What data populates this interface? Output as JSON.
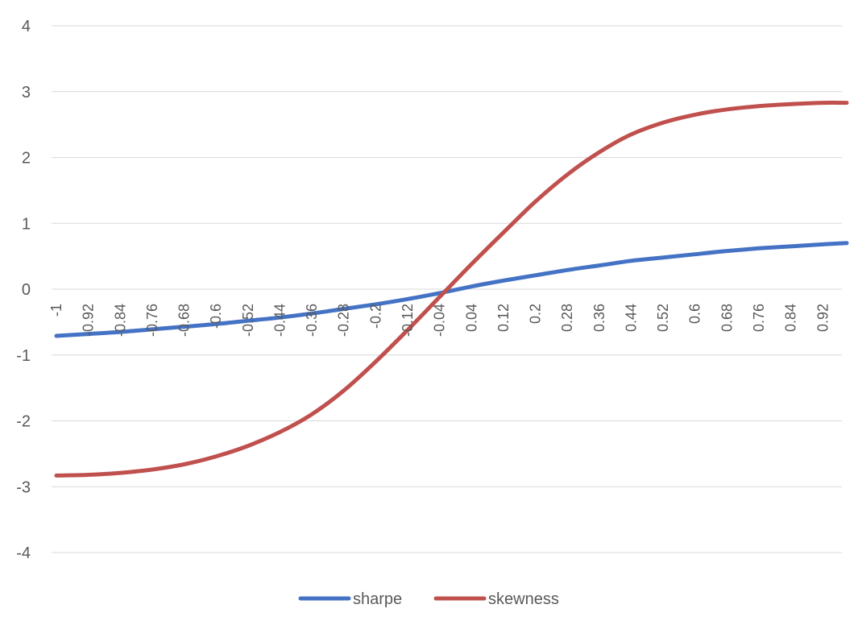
{
  "chart_data": {
    "type": "line",
    "title": "",
    "xlabel": "",
    "ylabel": "",
    "ylim": [
      -4,
      4
    ],
    "y_ticks": [
      "4",
      "3",
      "2",
      "1",
      "0",
      "-1",
      "-2",
      "-3",
      "-4"
    ],
    "y_tick_values": [
      4,
      3,
      2,
      1,
      0,
      -1,
      -2,
      -3,
      -4
    ],
    "x_range": [
      -1,
      0.98
    ],
    "x_tick_labels": [
      "-1",
      "-0.92",
      "-0.84",
      "-0.76",
      "-0.68",
      "-0.6",
      "-0.52",
      "-0.44",
      "-0.36",
      "-0.28",
      "-0.2",
      "-0.12",
      "-0.04",
      "0.04",
      "0.12",
      "0.2",
      "0.28",
      "0.36",
      "0.44",
      "0.52",
      "0.6",
      "0.68",
      "0.76",
      "0.84",
      "0.92"
    ],
    "x_tick_values": [
      -1,
      -0.92,
      -0.84,
      -0.76,
      -0.68,
      -0.6,
      -0.52,
      -0.44,
      -0.36,
      -0.28,
      -0.2,
      -0.12,
      -0.04,
      0.04,
      0.12,
      0.2,
      0.28,
      0.36,
      0.44,
      0.52,
      0.6,
      0.68,
      0.76,
      0.84,
      0.92
    ],
    "grid": true,
    "legend_position": "bottom",
    "series": [
      {
        "name": "sharpe",
        "color": "#4472c4",
        "x": [
          -1,
          -0.92,
          -0.84,
          -0.76,
          -0.68,
          -0.6,
          -0.52,
          -0.44,
          -0.36,
          -0.28,
          -0.2,
          -0.12,
          -0.04,
          0.04,
          0.12,
          0.2,
          0.28,
          0.36,
          0.44,
          0.52,
          0.6,
          0.68,
          0.76,
          0.84,
          0.92,
          0.98
        ],
        "y": [
          -0.71,
          -0.68,
          -0.65,
          -0.61,
          -0.57,
          -0.53,
          -0.48,
          -0.43,
          -0.37,
          -0.3,
          -0.23,
          -0.15,
          -0.06,
          0.04,
          0.13,
          0.21,
          0.29,
          0.36,
          0.43,
          0.48,
          0.53,
          0.58,
          0.62,
          0.65,
          0.68,
          0.7
        ]
      },
      {
        "name": "skewness",
        "color": "#c0504d",
        "x": [
          -1,
          -0.92,
          -0.84,
          -0.76,
          -0.68,
          -0.6,
          -0.52,
          -0.44,
          -0.36,
          -0.28,
          -0.2,
          -0.12,
          -0.04,
          0.04,
          0.12,
          0.2,
          0.28,
          0.36,
          0.44,
          0.52,
          0.6,
          0.68,
          0.76,
          0.84,
          0.92,
          0.98
        ],
        "y": [
          -2.83,
          -2.82,
          -2.79,
          -2.74,
          -2.66,
          -2.54,
          -2.38,
          -2.17,
          -1.9,
          -1.54,
          -1.1,
          -0.62,
          -0.12,
          0.38,
          0.86,
          1.33,
          1.74,
          2.08,
          2.35,
          2.53,
          2.65,
          2.73,
          2.78,
          2.81,
          2.83,
          2.83
        ]
      }
    ]
  }
}
